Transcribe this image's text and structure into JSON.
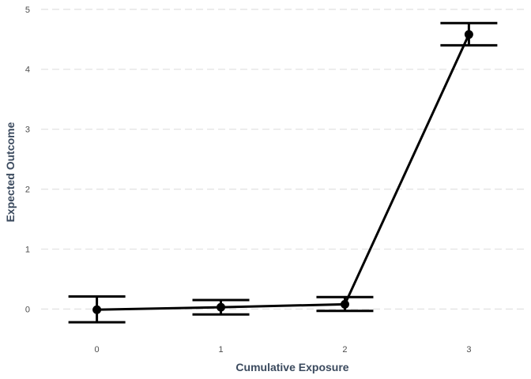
{
  "chart_data": {
    "type": "line",
    "xlabel": "Cumulative Exposure",
    "ylabel": "Expected Outcome",
    "x": [
      0,
      1,
      2,
      3
    ],
    "x_tick_labels": [
      "0",
      "1",
      "2",
      "3"
    ],
    "y_ticks": [
      0,
      1,
      2,
      3,
      4,
      5
    ],
    "y_tick_labels": [
      "0",
      "1",
      "2",
      "3",
      "4",
      "5"
    ],
    "xlim": [
      -0.45,
      3.45
    ],
    "ylim": [
      -0.6,
      5.05
    ],
    "series": [
      {
        "values": [
          -0.01,
          0.03,
          0.08,
          4.58
        ],
        "lower": [
          -0.22,
          -0.09,
          -0.03,
          4.4
        ],
        "upper": [
          0.21,
          0.15,
          0.2,
          4.77
        ]
      }
    ],
    "grid": "horizontal-dashed",
    "legend": "none",
    "colors": {
      "line": "#000000",
      "grid": "#e3e3e3",
      "axis_title": "#3b4a5e"
    }
  }
}
